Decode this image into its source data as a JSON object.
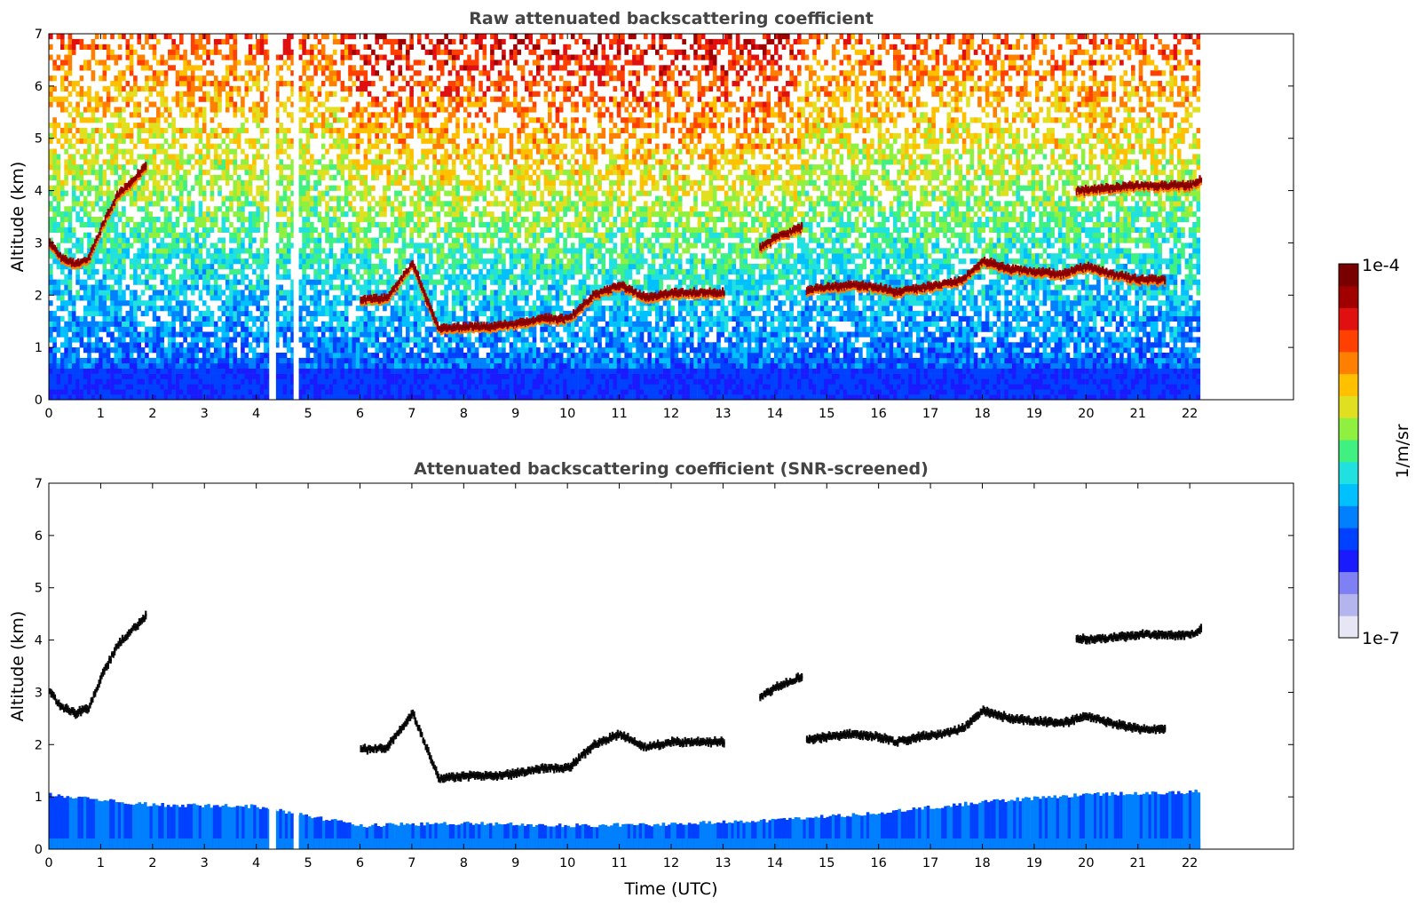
{
  "chart_data": [
    {
      "type": "heatmap",
      "title": "Raw attenuated backscattering coefficient",
      "xlabel": "",
      "ylabel": "Altitude (km)",
      "xlim": [
        0,
        24
      ],
      "ylim": [
        0,
        7
      ],
      "xticks": [
        "0",
        "1",
        "2",
        "3",
        "4",
        "5",
        "6",
        "7",
        "8",
        "9",
        "10",
        "11",
        "12",
        "13",
        "14",
        "15",
        "16",
        "17",
        "18",
        "19",
        "20",
        "21",
        "22"
      ],
      "yticks": [
        "0",
        "1",
        "2",
        "3",
        "4",
        "5",
        "6",
        "7"
      ],
      "data_extent_hours": [
        0,
        22.2
      ],
      "data_gaps_hours": [
        [
          4.25,
          4.38
        ],
        [
          4.72,
          4.82
        ]
      ],
      "features": {
        "boundary_layer_top_km": 0.6,
        "noisy_region": "signal noise increases with altitude; strong noise between 6 and 14 UTC above 4 km",
        "cloud_layers": [
          {
            "name": "low-cloud-early",
            "t": [
              0.0,
              0.25,
              0.5,
              0.75,
              1.0,
              1.3,
              1.6,
              1.85
            ],
            "h_km": [
              3.0,
              2.7,
              2.6,
              2.7,
              3.3,
              3.9,
              4.2,
              4.45
            ]
          },
          {
            "name": "main-cloud-layer",
            "t": [
              6.0,
              6.5,
              7.0,
              7.5,
              8.0,
              8.5,
              9.0,
              9.5,
              10.0,
              10.5,
              11.0,
              11.5,
              12.0,
              12.5,
              13.0
            ],
            "h_km": [
              1.9,
              1.95,
              2.6,
              1.35,
              1.4,
              1.4,
              1.45,
              1.55,
              1.55,
              2.0,
              2.2,
              1.95,
              2.05,
              2.05,
              2.05
            ]
          },
          {
            "name": "mid-cloud",
            "t": [
              13.7,
              14.0,
              14.5
            ],
            "h_km": [
              2.9,
              3.1,
              3.3
            ]
          },
          {
            "name": "evening-cloud-layer",
            "t": [
              14.6,
              15.0,
              15.5,
              16.0,
              16.3,
              16.8,
              17.2,
              17.6,
              18.0,
              18.5,
              19.0,
              19.5,
              20.0,
              20.5,
              21.0,
              21.5
            ],
            "h_km": [
              2.1,
              2.15,
              2.2,
              2.15,
              2.05,
              2.15,
              2.2,
              2.3,
              2.65,
              2.5,
              2.45,
              2.4,
              2.55,
              2.4,
              2.3,
              2.3
            ]
          },
          {
            "name": "upper-cloud-late",
            "t": [
              19.8,
              20.5,
              21.0,
              21.5,
              22.0,
              22.2
            ],
            "h_km": [
              4.0,
              4.05,
              4.1,
              4.1,
              4.1,
              4.2
            ]
          }
        ]
      }
    },
    {
      "type": "heatmap",
      "title": "Attenuated backscattering coefficient (SNR-screened)",
      "xlabel": "Time (UTC)",
      "ylabel": "Altitude (km)",
      "xlim": [
        0,
        24
      ],
      "ylim": [
        0,
        7
      ],
      "xticks": [
        "0",
        "1",
        "2",
        "3",
        "4",
        "5",
        "6",
        "7",
        "8",
        "9",
        "10",
        "11",
        "12",
        "13",
        "14",
        "15",
        "16",
        "17",
        "18",
        "19",
        "20",
        "21",
        "22"
      ],
      "yticks": [
        "0",
        "1",
        "2",
        "3",
        "4",
        "5",
        "6",
        "7"
      ],
      "data_extent_hours": [
        0,
        22.2
      ],
      "features": {
        "boundary_layer": {
          "t": [
            0,
            1,
            2,
            4,
            6,
            8,
            10,
            12,
            14,
            16,
            18,
            20,
            22.2
          ],
          "top_km": [
            1.05,
            0.95,
            0.85,
            0.82,
            0.45,
            0.5,
            0.45,
            0.48,
            0.55,
            0.7,
            0.9,
            1.05,
            1.1
          ]
        },
        "note": "cloud layers as in upper panel, saturated (black) where strongest"
      }
    }
  ],
  "colorbar": {
    "label": "1/m/sr",
    "max_label": "1e-4",
    "min_label": "1e-7",
    "scale": "log",
    "colors": [
      "#e6e6f5",
      "#b4b4ee",
      "#8080f5",
      "#1a1aff",
      "#0040ff",
      "#0080ff",
      "#00c0ff",
      "#20e0e0",
      "#40f080",
      "#90f040",
      "#e0e020",
      "#ffc000",
      "#ff8000",
      "#ff4000",
      "#e01010",
      "#a00000",
      "#780000"
    ]
  }
}
